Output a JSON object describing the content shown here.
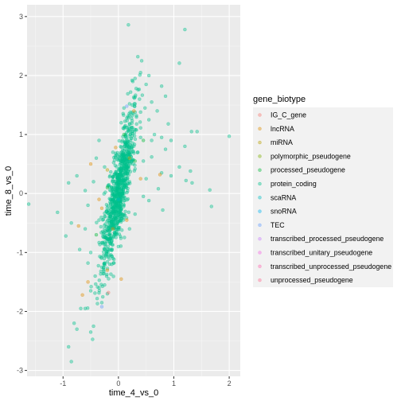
{
  "chart_data": {
    "type": "scatter",
    "xlabel": "time_4_vs_0",
    "ylabel": "time_8_vs_0",
    "xlim": [
      -1.65,
      2.2
    ],
    "ylim": [
      -3.1,
      3.2
    ],
    "x_ticks": [
      -1,
      0,
      1,
      2
    ],
    "y_ticks": [
      -3,
      -2,
      -1,
      0,
      1,
      2,
      3
    ],
    "grid": true,
    "legend": {
      "title": "gene_biotype",
      "placement": "right",
      "entries": [
        {
          "name": "IG_C_gene",
          "color": "#F8766D"
        },
        {
          "name": "lncRNA",
          "color": "#DE8C00"
        },
        {
          "name": "miRNA",
          "color": "#B79F00"
        },
        {
          "name": "polymorphic_pseudogene",
          "color": "#7CAE00"
        },
        {
          "name": "processed_pseudogene",
          "color": "#00BA38"
        },
        {
          "name": "protein_coding",
          "color": "#00C08B"
        },
        {
          "name": "scaRNA",
          "color": "#00BFC4"
        },
        {
          "name": "snoRNA",
          "color": "#00B4F0"
        },
        {
          "name": "TEC",
          "color": "#619CFF"
        },
        {
          "name": "transcribed_processed_pseudogene",
          "color": "#C77CFF"
        },
        {
          "name": "transcribed_unitary_pseudogene",
          "color": "#F564E3"
        },
        {
          "name": "transcribed_unprocessed_pseudogene",
          "color": "#FF64B0"
        },
        {
          "name": "unprocessed_pseudogene",
          "color": "#FF6C91"
        }
      ]
    },
    "series": [
      {
        "name": "protein_coding",
        "color": "#00C08B",
        "points": [
          [
            0.18,
            2.86
          ],
          [
            1.2,
            2.78
          ],
          [
            0.35,
            2.32
          ],
          [
            0.42,
            2.25
          ],
          [
            1.1,
            2.21
          ],
          [
            0.4,
            2.05
          ],
          [
            0.55,
            2.0
          ],
          [
            0.3,
            1.95
          ],
          [
            0.5,
            1.85
          ],
          [
            0.78,
            1.82
          ],
          [
            0.32,
            1.78
          ],
          [
            0.22,
            1.72
          ],
          [
            0.85,
            1.65
          ],
          [
            0.38,
            1.6
          ],
          [
            0.6,
            1.55
          ],
          [
            0.25,
            1.5
          ],
          [
            0.48,
            1.45
          ],
          [
            0.4,
            1.38
          ],
          [
            0.2,
            1.32
          ],
          [
            0.15,
            1.28
          ],
          [
            0.7,
            1.4
          ],
          [
            0.55,
            1.25
          ],
          [
            0.9,
            1.18
          ],
          [
            0.1,
            1.1
          ],
          [
            1.32,
            1.05
          ],
          [
            1.42,
            1.05
          ],
          [
            0.65,
            1.0
          ],
          [
            0.78,
            0.95
          ],
          [
            0.95,
            0.9
          ],
          [
            -0.35,
            0.9
          ],
          [
            2.0,
            0.97
          ],
          [
            1.2,
            0.8
          ],
          [
            0.85,
            0.75
          ],
          [
            0.6,
            0.62
          ],
          [
            0.45,
            0.55
          ],
          [
            1.1,
            0.45
          ],
          [
            0.78,
            0.35
          ],
          [
            0.95,
            0.3
          ],
          [
            1.3,
            0.38
          ],
          [
            1.22,
            0.22
          ],
          [
            1.33,
            0.18
          ],
          [
            1.65,
            0.06
          ],
          [
            1.68,
            -0.22
          ],
          [
            0.8,
            -0.28
          ],
          [
            0.55,
            -0.12
          ],
          [
            0.72,
            0.08
          ],
          [
            0.45,
            -0.05
          ],
          [
            -1.62,
            -0.18
          ],
          [
            -1.1,
            -0.32
          ],
          [
            -0.9,
            0.18
          ],
          [
            -0.75,
            0.3
          ],
          [
            -0.6,
            0.05
          ],
          [
            -0.85,
            -0.5
          ],
          [
            -0.95,
            -0.72
          ],
          [
            -0.6,
            -0.6
          ],
          [
            -0.7,
            -0.95
          ],
          [
            -0.5,
            -1.0
          ],
          [
            -0.55,
            -1.18
          ],
          [
            -0.3,
            -1.25
          ],
          [
            -0.42,
            -1.4
          ],
          [
            -0.35,
            -1.6
          ],
          [
            -0.5,
            -1.65
          ],
          [
            -0.2,
            -1.7
          ],
          [
            -0.3,
            -1.85
          ],
          [
            -0.68,
            -1.95
          ],
          [
            -0.6,
            -1.95
          ],
          [
            -0.8,
            -2.2
          ],
          [
            -0.45,
            -2.25
          ],
          [
            -0.5,
            -2.35
          ],
          [
            -0.9,
            -2.6
          ],
          [
            -0.85,
            -2.85
          ],
          [
            -0.75,
            -2.3
          ],
          [
            -0.25,
            -1.55
          ],
          [
            -0.1,
            -1.1
          ],
          [
            0.0,
            -0.9
          ],
          [
            0.05,
            0.5
          ],
          [
            0.12,
            0.8
          ],
          [
            -0.15,
            0.3
          ],
          [
            0.2,
            0.2
          ],
          [
            -0.05,
            -0.3
          ],
          [
            0.1,
            1.45
          ],
          [
            0.3,
            1.52
          ],
          [
            0.26,
            1.9
          ],
          [
            0.05,
            1.2
          ],
          [
            -0.1,
            0.7
          ],
          [
            -0.25,
            0.45
          ],
          [
            -0.4,
            0.6
          ],
          [
            -0.45,
            0.2
          ],
          [
            -0.55,
            -0.2
          ],
          [
            -0.35,
            -0.45
          ],
          [
            -0.25,
            -0.75
          ],
          [
            -0.15,
            -0.95
          ],
          [
            0.35,
            0.7
          ],
          [
            0.4,
            0.95
          ],
          [
            0.25,
            1.05
          ],
          [
            0.3,
            -0.35
          ],
          [
            0.5,
            0.25
          ],
          [
            0.6,
            0.9
          ],
          [
            0.2,
            -0.6
          ],
          [
            0.1,
            -0.2
          ]
        ]
      },
      {
        "name": "lncRNA",
        "color": "#DE8C00",
        "points": [
          [
            -0.05,
            0.78
          ],
          [
            0.28,
            1.4
          ],
          [
            0.75,
            0.32
          ],
          [
            -0.72,
            -0.55
          ],
          [
            -0.3,
            -0.25
          ],
          [
            0.15,
            -0.45
          ],
          [
            -0.5,
            0.5
          ],
          [
            0.05,
            -1.45
          ],
          [
            -0.55,
            -1.5
          ],
          [
            -0.2,
            -1.3
          ],
          [
            -0.65,
            -1.72
          ],
          [
            -0.35,
            -0.1
          ],
          [
            0.4,
            0.25
          ],
          [
            -0.1,
            -0.6
          ]
        ]
      },
      {
        "name": "processed_pseudogene",
        "color": "#00BA38",
        "points": [
          [
            0.1,
            1.0
          ],
          [
            -0.2,
            0.1
          ],
          [
            0.3,
            0.55
          ],
          [
            -0.4,
            -0.7
          ],
          [
            0.45,
            0.9
          ]
        ]
      },
      {
        "name": "miRNA",
        "color": "#B79F00",
        "points": [
          [
            -0.2,
            0.4
          ],
          [
            0.2,
            0.6
          ]
        ]
      },
      {
        "name": "TEC",
        "color": "#619CFF",
        "points": [
          [
            0.15,
            1.48
          ],
          [
            -0.3,
            -1.92
          ]
        ]
      },
      {
        "name": "IG_C_gene",
        "color": "#F8766D",
        "points": [
          [
            -0.18,
            -1.68
          ]
        ]
      },
      {
        "name": "scaRNA",
        "color": "#00BFC4",
        "points": [
          [
            0.0,
            -0.1
          ]
        ]
      }
    ]
  }
}
